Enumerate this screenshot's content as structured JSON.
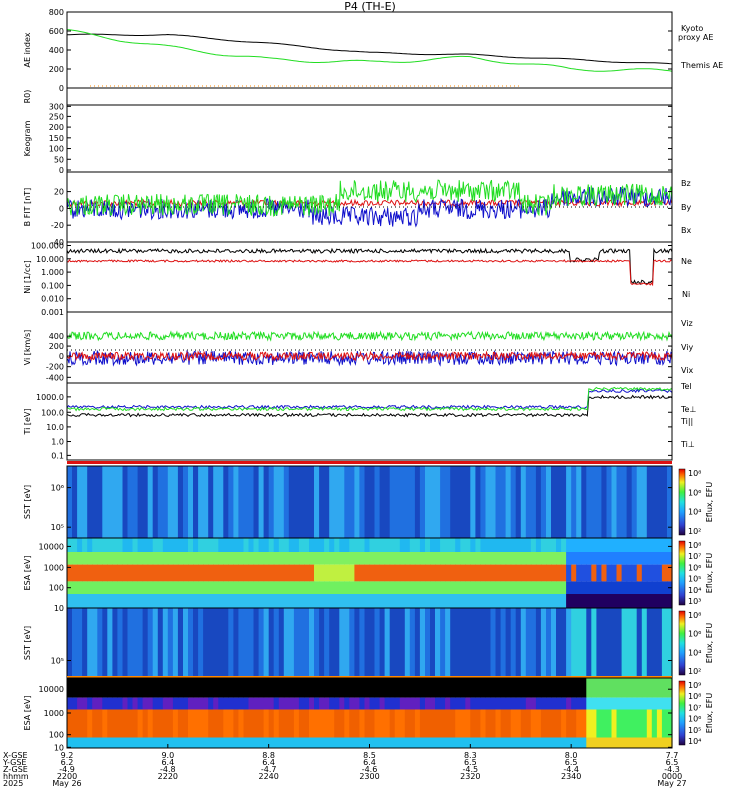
{
  "title": "P4 (TH-E)",
  "colors": {
    "black": "#000000",
    "green": "#22dd22",
    "red": "#dd1111",
    "blue": "#1111cc",
    "orange": "#ff8800"
  },
  "chart_data": [
    {
      "type": "line",
      "id": "ae",
      "ylabel": "AE index",
      "ylim": [
        0,
        800
      ],
      "yticks": [
        "800",
        "600",
        "400",
        "200",
        "0"
      ],
      "x": [
        "2200",
        "2220",
        "2240",
        "2300",
        "2320",
        "2340",
        "0000"
      ],
      "series": [
        {
          "name": "Themis AE",
          "color": "#000000",
          "values": [
            560,
            560,
            470,
            370,
            350,
            300,
            250
          ]
        },
        {
          "name": "Kyoto proxy AE",
          "color": "#22dd22",
          "values": [
            600,
            430,
            300,
            270,
            320,
            200,
            180
          ]
        }
      ],
      "legend": [
        "Kyoto",
        "proxy AE",
        "Themis AE"
      ]
    },
    {
      "type": "line",
      "id": "rsun",
      "ylabel": "R0)",
      "yticks": []
    },
    {
      "type": "line",
      "id": "keogram",
      "ylabel": "Keogram",
      "ylim": [
        0,
        300
      ],
      "yticks": [
        "300",
        "250",
        "200",
        "150",
        "100",
        "50",
        "0"
      ]
    },
    {
      "type": "line",
      "id": "bfield",
      "ylabel": "B FIT [nT]",
      "ylim": [
        -40,
        40
      ],
      "yticks": [
        "20",
        "0",
        "-20",
        "-40"
      ],
      "series": [
        {
          "name": "Bz",
          "color": "#dd1111"
        },
        {
          "name": "By",
          "color": "#22dd22"
        },
        {
          "name": "Bx",
          "color": "#1111cc"
        }
      ]
    },
    {
      "type": "line",
      "id": "density",
      "ylabel": "Ni [1/cc]",
      "log": true,
      "yticks": [
        "100.000",
        "10.000",
        "1.000",
        "0.100",
        "0.010",
        "0.001"
      ],
      "series": [
        {
          "name": "Ne",
          "color": "#dd1111"
        },
        {
          "name": "Ni",
          "color": "#000000"
        }
      ]
    },
    {
      "type": "line",
      "id": "velocity",
      "ylabel": "Vi [km/s]",
      "ylim": [
        -500,
        500
      ],
      "yticks": [
        "400",
        "200",
        "0",
        "-200",
        "-400"
      ],
      "series": [
        {
          "name": "Viz",
          "color": "#dd1111"
        },
        {
          "name": "Viy",
          "color": "#22dd22"
        },
        {
          "name": "Vix",
          "color": "#1111cc"
        }
      ]
    },
    {
      "type": "line",
      "id": "temperature",
      "ylabel": "Ti [eV]",
      "log": true,
      "yticks": [
        "1000.0",
        "100.0",
        "10.0",
        "1.0",
        "0.1"
      ],
      "series": [
        {
          "name": "Tel",
          "color": "#000000"
        },
        {
          "name": "Te⊥",
          "color": "#dd1111"
        },
        {
          "name": "Ti||",
          "color": "#22dd22"
        },
        {
          "name": "Ti⊥",
          "color": "#1111cc"
        }
      ]
    },
    {
      "type": "heatmap",
      "id": "sst_i",
      "ylabel": "SST [eV]",
      "yticks": [
        "10⁶",
        "10⁵"
      ],
      "colorbar": {
        "label": "Eflux, EFU",
        "ticks": [
          "10⁸",
          "10⁶",
          "10⁴",
          "10²"
        ]
      }
    },
    {
      "type": "heatmap",
      "id": "esa_i",
      "ylabel": "ESA [eV]",
      "yticks": [
        "10000",
        "1000",
        "100",
        "10"
      ],
      "colorbar": {
        "label": "Eflux, EFU",
        "ticks": [
          "10⁸",
          "10⁷",
          "10⁶",
          "10⁵",
          "10⁴",
          "10³"
        ]
      }
    },
    {
      "type": "heatmap",
      "id": "sst_e",
      "ylabel": "SST [eV]",
      "yticks": [
        "10⁵"
      ],
      "colorbar": {
        "label": "Eflux, EFU",
        "ticks": [
          "10⁸",
          "10⁶",
          "10⁴",
          "10²"
        ]
      }
    },
    {
      "type": "heatmap",
      "id": "esa_e",
      "ylabel": "ESA [eV]",
      "yticks": [
        "10000",
        "1000",
        "100",
        "10"
      ],
      "colorbar": {
        "label": "Eflux, EFU",
        "ticks": [
          "10⁹",
          "10⁸",
          "10⁷",
          "10⁶",
          "10⁵",
          "10⁴"
        ]
      }
    }
  ],
  "footer": {
    "row_labels": [
      "X-GSE",
      "Y-GSE",
      "Z-GSE",
      "hhmm",
      "2025"
    ],
    "columns": [
      {
        "x": "9.2",
        "y": "6.2",
        "z": "-4.9",
        "t": "2200",
        "d": "May 26"
      },
      {
        "x": "9.0",
        "y": "6.4",
        "z": "-4.8",
        "t": "2220",
        "d": ""
      },
      {
        "x": "8.8",
        "y": "6.4",
        "z": "-4.7",
        "t": "2240",
        "d": ""
      },
      {
        "x": "8.5",
        "y": "6.4",
        "z": "-4.6",
        "t": "2300",
        "d": ""
      },
      {
        "x": "8.3",
        "y": "6.5",
        "z": "-4.5",
        "t": "2320",
        "d": ""
      },
      {
        "x": "8.0",
        "y": "6.5",
        "z": "-4.4",
        "t": "2340",
        "d": ""
      },
      {
        "x": "7.7",
        "y": "6.5",
        "z": "-4.3",
        "t": "0000",
        "d": "May 27"
      }
    ]
  }
}
